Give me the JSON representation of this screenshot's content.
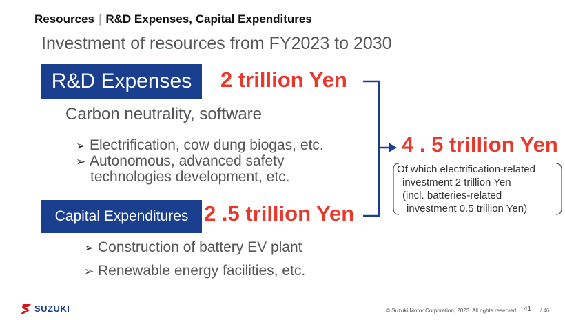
{
  "header": {
    "left": "Resources",
    "separator": "|",
    "right": "R&D Expenses, Capital Expenditures"
  },
  "subtitle": "Investment of resources from FY2023 to 2030",
  "rd": {
    "label": "R&D Expenses",
    "amount": "2  trillion Yen",
    "topic": "Carbon neutrality, software",
    "bullets": [
      "Electrification, cow dung biogas, etc.",
      "Autonomous, advanced safety"
    ],
    "bullet2_cont": "technologies development, etc."
  },
  "capex": {
    "label": "Capital Expenditures",
    "amount": "2 .5 trillion Yen",
    "bullets": [
      "Construction of battery EV plant",
      "Renewable energy facilities, etc."
    ]
  },
  "total": {
    "amount": "4 . 5 trillion Yen",
    "note_lines": [
      "Of which electrification-related",
      "investment 2 trillion Yen",
      "(incl. batteries-related",
      "investment 0.5 trillion Yen)"
    ]
  },
  "footer": {
    "logo_text": "SUZUKI",
    "copyright": "© Suzuki Motor Corporation, 2023. All rights reserved.",
    "page": "41",
    "total_pages": "/ 46"
  },
  "icons": {
    "bullet": "arrowhead-bullet-icon",
    "logo": "suzuki-s-logo-icon"
  },
  "colors": {
    "navy": "#1b3f8f",
    "red": "#e8382c"
  }
}
